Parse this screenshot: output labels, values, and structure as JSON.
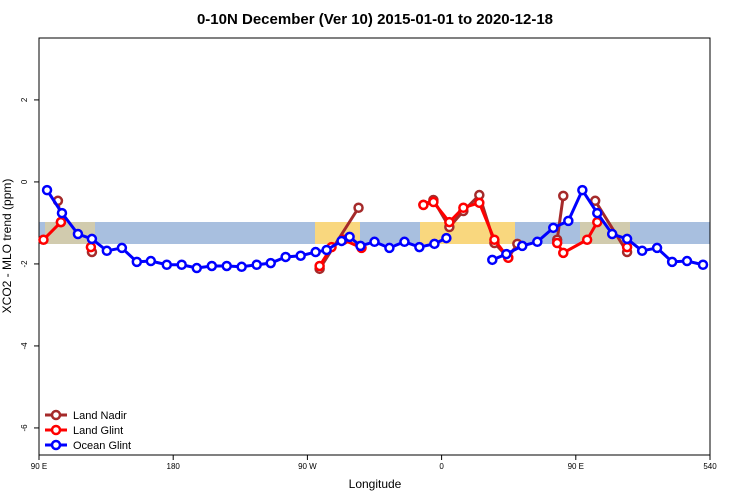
{
  "chart_data": {
    "type": "line",
    "title": "0-10N December (Ver 10)   2015-01-01 to 2020-12-18",
    "x_label": "Longitude",
    "y_label": "XCO2 - MLO trend (ppm)",
    "xlim": [
      90,
      540
    ],
    "xticks": [
      {
        "value": 90,
        "label": "90 E"
      },
      180,
      {
        "value": 270,
        "label": "90 W"
      },
      {
        "value": 360,
        "label": "0"
      },
      {
        "value": 450,
        "label": "90 E"
      },
      540
    ],
    "ylim": [
      -6.66,
      3.51
    ],
    "yticks": [
      2,
      0,
      -2,
      -4,
      -6
    ],
    "legend": "bottom-left",
    "series": [
      {
        "name": "Land Nadir",
        "color": "#a52a2a",
        "x": [
          102.7,
          104.7,
          null,
          125.5,
          null,
          278.2,
          304.3,
          null,
          347.8,
          354.5,
          365.2,
          374.6,
          385.3,
          395.4,
          404.7,
          410.8,
          null,
          437.5,
          441.6,
          null,
          463,
          484.4
        ],
        "values": [
          -0.46,
          -0.98,
          null,
          -1.71,
          null,
          -2.12,
          -0.63,
          null,
          -0.56,
          -0.44,
          -1.1,
          -0.71,
          -0.32,
          -1.49,
          -1.85,
          -1.51,
          null,
          -1.41,
          -0.34,
          null,
          -0.46,
          -1.71
        ]
      },
      {
        "name": "Land Glint",
        "color": "#ff0000",
        "x": [
          93,
          104.7,
          null,
          124.8,
          null,
          278.2,
          286.2,
          294.2,
          306.3,
          null,
          347.8,
          354.5,
          365.2,
          374.6,
          385.3,
          395.4,
          404.7,
          null,
          437.5,
          441.6,
          457.6,
          464.4,
          null,
          484.4
        ],
        "values": [
          -1.41,
          -0.98,
          null,
          -1.59,
          null,
          -2.05,
          -1.59,
          -1.41,
          -1.61,
          null,
          -0.56,
          -0.49,
          -0.98,
          -0.63,
          -0.51,
          -1.41,
          -1.85,
          null,
          -1.49,
          -1.73,
          -1.41,
          -0.98,
          null,
          -1.59
        ]
      },
      {
        "name": "Ocean Glint",
        "color": "#0000ff",
        "x": [
          95.4,
          105.4,
          116.1,
          125.5,
          135.5,
          145.6,
          155.6,
          165,
          175.7,
          185.7,
          195.8,
          205.9,
          215.9,
          225.9,
          236,
          245.4,
          255.4,
          265.5,
          275.5,
          282.9,
          292.9,
          298.3,
          305.6,
          315,
          325,
          335.1,
          345.1,
          355.2,
          363.2,
          null,
          394,
          403.4,
          414.1,
          424.2,
          434.9,
          445,
          454.4,
          464.4,
          474.4,
          484.4,
          494.5,
          504.5,
          514.6,
          524.6,
          535.3
        ],
        "values": [
          -0.2,
          -0.76,
          -1.27,
          -1.39,
          -1.68,
          -1.61,
          -1.95,
          -1.93,
          -2.02,
          -2.02,
          -2.1,
          -2.05,
          -2.05,
          -2.07,
          -2.02,
          -1.98,
          -1.83,
          -1.8,
          -1.71,
          -1.66,
          -1.44,
          -1.34,
          -1.56,
          -1.46,
          -1.61,
          -1.46,
          -1.59,
          -1.51,
          -1.37,
          null,
          -1.9,
          -1.76,
          -1.56,
          -1.46,
          -1.12,
          -0.95,
          -0.2,
          -0.76,
          -1.27,
          -1.39,
          -1.68,
          -1.61,
          -1.95,
          -1.93,
          -2.02
        ]
      }
    ]
  }
}
